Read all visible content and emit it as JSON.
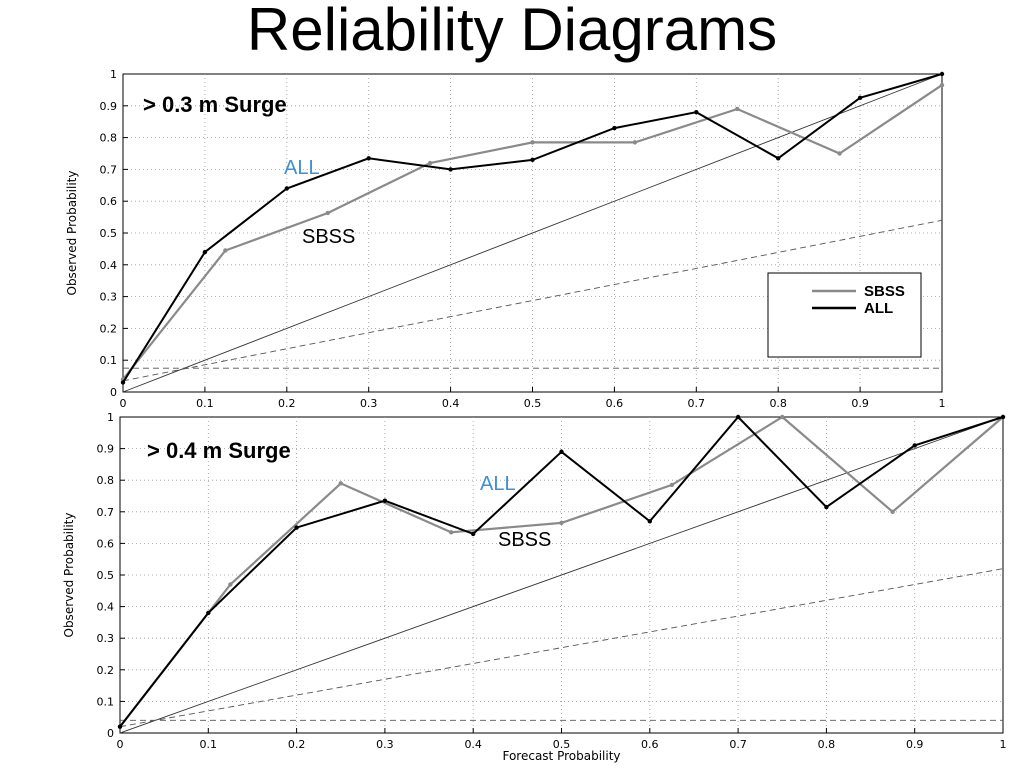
{
  "title": "Reliability Diagrams",
  "colors": {
    "sbss": "#8a8a8a",
    "all": "#000000",
    "annotation_all": "#3d8fd6",
    "grid": "#9a9a9a"
  },
  "chart_data": [
    {
      "type": "line",
      "title": "> 0.3 m Surge",
      "xlabel": "",
      "ylabel": "Observed Probability",
      "xlim": [
        0,
        1
      ],
      "ylim": [
        0,
        1
      ],
      "x_ticks": [
        "0",
        "0.1",
        "0.2",
        "0.3",
        "0.4",
        "0.5",
        "0.6",
        "0.7",
        "0.8",
        "0.9",
        "1"
      ],
      "y_ticks": [
        "0",
        "0.1",
        "0.2",
        "0.3",
        "0.4",
        "0.5",
        "0.6",
        "0.7",
        "0.8",
        "0.9",
        "1"
      ],
      "grid": true,
      "legend_position": "bottom-right",
      "legend": [
        "SBSS",
        "ALL"
      ],
      "series": [
        {
          "name": "SBSS",
          "x": [
            0,
            0.125,
            0.25,
            0.375,
            0.5,
            0.625,
            0.75,
            0.875,
            1.0
          ],
          "y": [
            0.04,
            0.445,
            0.563,
            0.72,
            0.785,
            0.785,
            0.89,
            0.75,
            0.965
          ]
        },
        {
          "name": "ALL",
          "x": [
            0,
            0.1,
            0.2,
            0.3,
            0.4,
            0.5,
            0.6,
            0.7,
            0.8,
            0.9,
            1.0
          ],
          "y": [
            0.03,
            0.44,
            0.64,
            0.735,
            0.7,
            0.73,
            0.83,
            0.88,
            0.735,
            0.925,
            1.0
          ]
        }
      ],
      "reference_lines": [
        {
          "name": "perfect-reliability",
          "style": "solid",
          "x": [
            0,
            1
          ],
          "y": [
            0,
            1
          ]
        },
        {
          "name": "no-skill",
          "style": "dashed",
          "x": [
            0,
            1
          ],
          "y": [
            0.035,
            0.54
          ]
        },
        {
          "name": "climatology",
          "style": "dashed",
          "x": [
            0,
            1
          ],
          "y": [
            0.075,
            0.075
          ]
        }
      ],
      "annotations": [
        {
          "text": "ALL",
          "x": 0.22,
          "y": 0.7
        },
        {
          "text": "SBSS",
          "x": 0.22,
          "y": 0.48
        }
      ]
    },
    {
      "type": "line",
      "title": "> 0.4 m Surge",
      "xlabel": "Forecast Probability",
      "ylabel": "Observed Probability",
      "xlim": [
        0,
        1
      ],
      "ylim": [
        0,
        1
      ],
      "x_ticks": [
        "0",
        "0.1",
        "0.2",
        "0.3",
        "0.4",
        "0.5",
        "0.6",
        "0.7",
        "0.8",
        "0.9",
        "1"
      ],
      "y_ticks": [
        "0",
        "0.1",
        "0.2",
        "0.3",
        "0.4",
        "0.5",
        "0.6",
        "0.7",
        "0.8",
        "0.9",
        "1"
      ],
      "grid": true,
      "legend": [],
      "series": [
        {
          "name": "SBSS",
          "x": [
            0,
            0.125,
            0.25,
            0.375,
            0.5,
            0.625,
            0.75,
            0.875,
            1.0
          ],
          "y": [
            0.02,
            0.47,
            0.79,
            0.635,
            0.665,
            0.785,
            1.0,
            0.7,
            1.0
          ]
        },
        {
          "name": "ALL",
          "x": [
            0,
            0.1,
            0.2,
            0.3,
            0.4,
            0.5,
            0.6,
            0.7,
            0.8,
            0.9,
            1.0
          ],
          "y": [
            0.02,
            0.38,
            0.65,
            0.735,
            0.63,
            0.89,
            0.67,
            1.0,
            0.715,
            0.91,
            1.0
          ]
        }
      ],
      "reference_lines": [
        {
          "name": "perfect-reliability",
          "style": "solid",
          "x": [
            0,
            1
          ],
          "y": [
            0,
            1
          ]
        },
        {
          "name": "no-skill",
          "style": "dashed",
          "x": [
            0,
            1
          ],
          "y": [
            0.02,
            0.52
          ]
        },
        {
          "name": "climatology",
          "style": "dashed",
          "x": [
            0,
            1
          ],
          "y": [
            0.04,
            0.04
          ]
        }
      ],
      "annotations": [
        {
          "text": "ALL",
          "x": 0.41,
          "y": 0.77
        },
        {
          "text": "SBSS",
          "x": 0.43,
          "y": 0.59
        }
      ]
    }
  ]
}
